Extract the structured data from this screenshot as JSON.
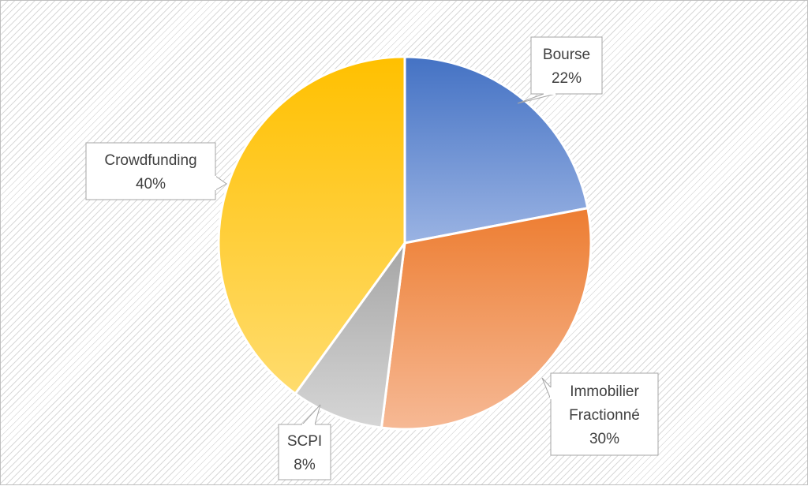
{
  "chart_data": {
    "type": "pie",
    "slices": [
      {
        "label": "Bourse",
        "value": 22,
        "value_label": "22%",
        "color_top": "#4472C4",
        "color_bottom": "#9AB3E3"
      },
      {
        "label": "Immobilier Fractionné",
        "label_lines": [
          "Immobilier",
          "Fractionné"
        ],
        "value": 30,
        "value_label": "30%",
        "color_top": "#ED7D31",
        "color_bottom": "#F6B995"
      },
      {
        "label": "SCPI",
        "value": 8,
        "value_label": "8%",
        "color_top": "#A5A5A5",
        "color_bottom": "#D6D6D6"
      },
      {
        "label": "Crowdfunding",
        "value": 40,
        "value_label": "40%",
        "color_top": "#FFC000",
        "color_bottom": "#FFDC6E"
      }
    ],
    "start_angle": "12 o'clock",
    "direction": "clockwise",
    "data_labels": "callouts with category name and percentage",
    "legend": "none"
  }
}
